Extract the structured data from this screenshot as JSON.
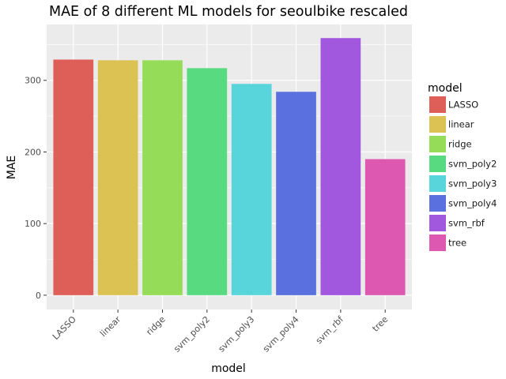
{
  "chart_data": {
    "type": "bar",
    "title": "MAE of 8 different ML models for seoulbike rescaled",
    "xlabel": "model",
    "ylabel": "MAE",
    "categories": [
      "LASSO",
      "linear",
      "ridge",
      "svm_poly2",
      "svm_poly3",
      "svm_poly4",
      "svm_rbf",
      "tree"
    ],
    "values": [
      329,
      328,
      328,
      317,
      295,
      284,
      359,
      190
    ],
    "colors": [
      "#DE5F57",
      "#DCC253",
      "#95DC58",
      "#57DA80",
      "#58D4DB",
      "#5970DE",
      "#A158DE",
      "#DD58B1"
    ],
    "ylim": [
      -20,
      378
    ],
    "yticks": [
      0,
      100,
      200,
      300
    ],
    "grid": true,
    "legend": {
      "title": "model",
      "position": "right"
    },
    "panel_background": "#EBEBEB"
  }
}
